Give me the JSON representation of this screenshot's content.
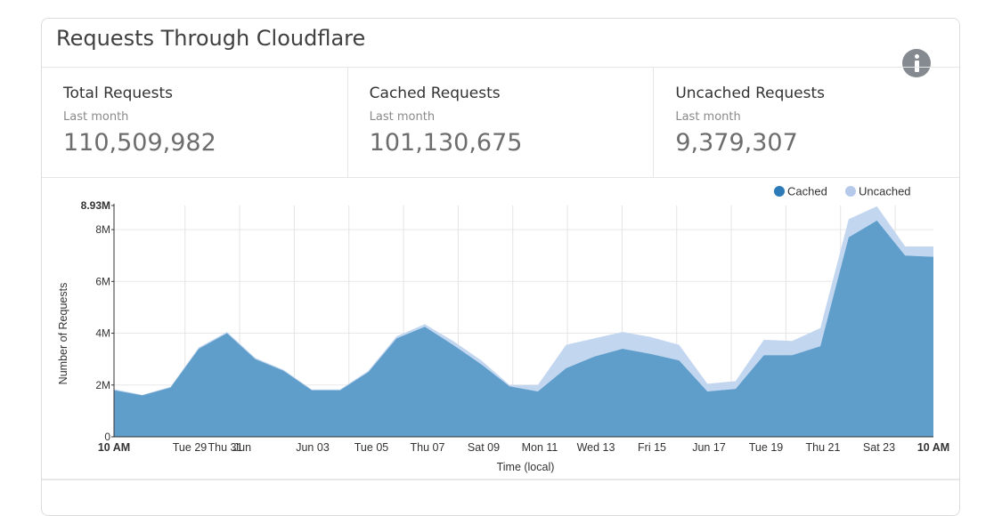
{
  "card": {
    "title": "Requests Through Cloudflare"
  },
  "stats": [
    {
      "label": "Total Requests",
      "period": "Last month",
      "value": "110,509,982"
    },
    {
      "label": "Cached Requests",
      "period": "Last month",
      "value": "101,130,675"
    },
    {
      "label": "Uncached Requests",
      "period": "Last month",
      "value": "9,379,307"
    }
  ],
  "colors": {
    "cached": "#5f9ecb",
    "uncached": "#c3d6f0",
    "cached_legend": "#2c7bb8",
    "uncached_legend": "#b7c9eb"
  },
  "chart_data": {
    "type": "area",
    "stacked": true,
    "xlabel": "Time (local)",
    "ylabel": "Number of Requests",
    "ylim": [
      0,
      8.93
    ],
    "y_ticks": [
      {
        "v": 0,
        "label": "0"
      },
      {
        "v": 2,
        "label": "2M"
      },
      {
        "v": 4,
        "label": "4M"
      },
      {
        "v": 6,
        "label": "6M"
      },
      {
        "v": 8,
        "label": "8M"
      },
      {
        "v": 8.93,
        "label": "8.93M",
        "bold": true
      }
    ],
    "legend": [
      {
        "name": "Cached",
        "color": "#2c7bb8"
      },
      {
        "name": "Uncached",
        "color": "#b7c9eb"
      }
    ],
    "legend_position": "top-right",
    "x_ticks": [
      {
        "i": 0,
        "label": "10 AM",
        "bold": true
      },
      {
        "i": 4,
        "label": "Tue 29"
      },
      {
        "i": 6,
        "label": "Thu 31"
      },
      {
        "i": 7,
        "label": "Jun"
      },
      {
        "i": 10,
        "label": "Jun 03"
      },
      {
        "i": 12,
        "label": "Tue 05"
      },
      {
        "i": 14,
        "label": "Thu 07"
      },
      {
        "i": 16,
        "label": "Sat 09"
      },
      {
        "i": 18,
        "label": "Mon 11"
      },
      {
        "i": 20,
        "label": "Wed 13"
      },
      {
        "i": 22,
        "label": "Fri 15"
      },
      {
        "i": 24,
        "label": "Jun 17"
      },
      {
        "i": 26,
        "label": "Tue 19"
      },
      {
        "i": 28,
        "label": "Thu 21"
      },
      {
        "i": 30,
        "label": "Sat 23"
      },
      {
        "i": 31,
        "label": "10 AM",
        "bold": true
      }
    ],
    "gridline_indices": [
      2.6,
      4.6,
      6.6,
      8.6,
      10.6,
      12.6,
      14.6,
      16.6,
      18.6,
      20.6,
      22.6,
      24.6,
      26.6,
      28.6
    ],
    "series": [
      {
        "name": "Cached",
        "values": [
          1.8,
          1.6,
          1.9,
          3.4,
          4.0,
          3.0,
          2.55,
          1.8,
          1.8,
          2.5,
          3.8,
          4.25,
          3.55,
          2.8,
          1.95,
          1.75,
          2.65,
          3.1,
          3.4,
          3.2,
          2.95,
          1.75,
          1.85,
          3.15,
          3.15,
          3.5,
          7.7,
          8.35,
          7.0,
          6.95
        ]
      },
      {
        "name": "Uncached",
        "values": [
          0.04,
          0.02,
          0.03,
          0.05,
          0.05,
          0.05,
          0.04,
          0.03,
          0.03,
          0.05,
          0.08,
          0.1,
          0.15,
          0.15,
          0.05,
          0.25,
          0.9,
          0.7,
          0.65,
          0.65,
          0.6,
          0.3,
          0.3,
          0.6,
          0.55,
          0.7,
          0.7,
          0.55,
          0.35,
          0.4
        ]
      }
    ],
    "x_positions": [
      0,
      1,
      2,
      3,
      4,
      5,
      6,
      7,
      8,
      9,
      10,
      11,
      12,
      13,
      14,
      15,
      16,
      17,
      18,
      19,
      20,
      21,
      22,
      23,
      24,
      25,
      26,
      27,
      28,
      29
    ]
  }
}
